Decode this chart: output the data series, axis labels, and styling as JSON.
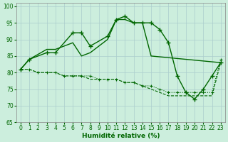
{
  "xlabel": "Humidité relative (%)",
  "xlim": [
    -0.5,
    23.5
  ],
  "ylim": [
    65,
    101
  ],
  "yticks": [
    65,
    70,
    75,
    80,
    85,
    90,
    95,
    100
  ],
  "xticks": [
    0,
    1,
    2,
    3,
    4,
    5,
    6,
    7,
    8,
    9,
    10,
    11,
    12,
    13,
    14,
    15,
    16,
    17,
    18,
    19,
    20,
    21,
    22,
    23
  ],
  "bg_color": "#cceedd",
  "grid_color": "#aacccc",
  "line_color": "#006600",
  "line1_x": [
    0,
    1,
    3,
    4,
    6,
    7,
    8,
    10,
    11,
    12,
    13,
    14,
    15,
    16,
    17,
    18,
    19,
    20,
    21,
    22,
    23
  ],
  "line1_y": [
    81,
    84,
    86,
    86,
    92,
    92,
    88,
    91,
    96,
    97,
    95,
    95,
    95,
    93,
    89,
    79,
    74,
    72,
    75,
    79,
    83
  ],
  "line2_x": [
    0,
    1,
    3,
    4,
    6,
    7,
    8,
    9,
    10,
    11,
    12,
    13,
    14,
    15,
    23
  ],
  "line2_y": [
    81,
    84,
    87,
    87,
    89,
    85,
    86,
    88,
    90,
    96,
    96,
    95,
    95,
    85,
    83
  ],
  "line3_x": [
    0,
    1,
    2,
    3,
    4,
    5,
    6,
    7,
    8,
    9,
    10,
    11,
    12,
    13,
    14,
    15,
    16,
    17,
    18,
    19,
    20,
    21,
    22,
    23
  ],
  "line3_y": [
    81,
    81,
    80,
    80,
    80,
    79,
    79,
    79,
    79,
    78,
    78,
    78,
    77,
    77,
    76,
    76,
    75,
    74,
    74,
    74,
    74,
    74,
    74,
    84
  ],
  "line4_x": [
    0,
    1,
    2,
    3,
    4,
    5,
    6,
    7,
    8,
    9,
    10,
    11,
    12,
    13,
    14,
    15,
    16,
    17,
    18,
    19,
    20,
    21,
    22,
    23
  ],
  "line4_y": [
    81,
    81,
    80,
    80,
    80,
    79,
    79,
    79,
    78,
    78,
    78,
    78,
    77,
    77,
    76,
    75,
    74,
    73,
    73,
    73,
    73,
    73,
    73,
    83
  ]
}
